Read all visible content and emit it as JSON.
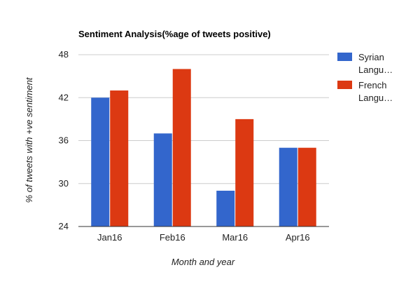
{
  "chart_data": {
    "type": "bar",
    "title": "Sentiment Analysis(%age of tweets positive)",
    "xlabel": "Month and year",
    "ylabel": "% of tweets with +ve sentiment",
    "categories": [
      "Jan16",
      "Feb16",
      "Mar16",
      "Apr16"
    ],
    "series": [
      {
        "name": "Syrian Langu…",
        "color": "#3366cc",
        "values": [
          42,
          37,
          29,
          35
        ]
      },
      {
        "name": "French Langu…",
        "color": "#dc3912",
        "values": [
          43,
          46,
          39,
          35
        ]
      }
    ],
    "ylim": [
      24,
      48
    ],
    "yticks": [
      "24",
      "30",
      "36",
      "42",
      "48"
    ],
    "grid": true,
    "legend_position": "right"
  }
}
